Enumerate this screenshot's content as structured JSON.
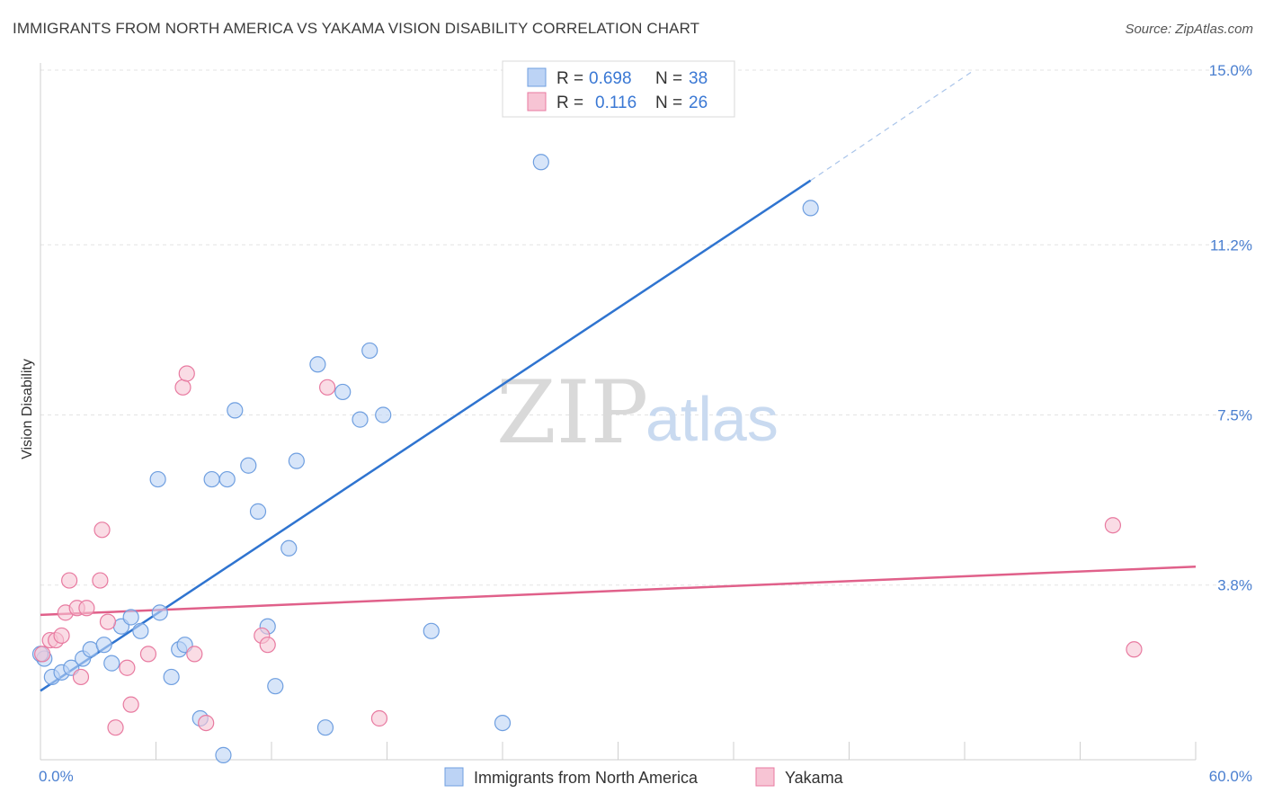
{
  "title": "IMMIGRANTS FROM NORTH AMERICA VS YAKAMA VISION DISABILITY CORRELATION CHART",
  "source": "Source: ZipAtlas.com",
  "watermark": {
    "zip": "ZIP",
    "atlas": "atlas"
  },
  "legend": {
    "r_label": "R =",
    "n_label": "N =",
    "blue": {
      "r": "0.698",
      "n": "38"
    },
    "pink": {
      "r": "0.116",
      "n": "26"
    }
  },
  "chart_data": {
    "type": "scatter",
    "title": "IMMIGRANTS FROM NORTH AMERICA VS YAKAMA VISION DISABILITY CORRELATION CHART",
    "xlabel": "",
    "ylabel": "Vision Disability",
    "xlim": [
      0,
      60
    ],
    "ylim": [
      0,
      15
    ],
    "x_tick_labels": [
      "0.0%",
      "60.0%"
    ],
    "y_ticks": [
      3.8,
      7.5,
      11.2,
      15.0
    ],
    "y_tick_labels": [
      "3.8%",
      "7.5%",
      "11.2%",
      "15.0%"
    ],
    "colors": {
      "blue": "#6f9fe0",
      "blue_fill": "#bcd3f5",
      "pink": "#e87aa0",
      "pink_fill": "#f7c4d4",
      "blue_line": "#2f74d0",
      "pink_line": "#e0608a"
    },
    "series": [
      {
        "name": "Immigrants from North America",
        "color": "blue",
        "R": 0.698,
        "N": 38,
        "trend": {
          "x0": 0,
          "y0": 1.5,
          "x1": 40,
          "y1": 12.6,
          "dash_to_x": 48.5,
          "dash_to_y": 15.0
        },
        "points": [
          [
            0.2,
            2.2
          ],
          [
            0.6,
            1.8
          ],
          [
            1.1,
            1.9
          ],
          [
            1.6,
            2.0
          ],
          [
            2.2,
            2.2
          ],
          [
            2.6,
            2.4
          ],
          [
            3.3,
            2.5
          ],
          [
            3.7,
            2.1
          ],
          [
            4.2,
            2.9
          ],
          [
            4.7,
            3.1
          ],
          [
            5.2,
            2.8
          ],
          [
            6.1,
            6.1
          ],
          [
            6.2,
            3.2
          ],
          [
            6.8,
            1.8
          ],
          [
            7.2,
            2.4
          ],
          [
            7.5,
            2.5
          ],
          [
            8.3,
            0.9
          ],
          [
            8.9,
            6.1
          ],
          [
            9.5,
            0.1
          ],
          [
            9.7,
            6.1
          ],
          [
            10.1,
            7.6
          ],
          [
            10.8,
            6.4
          ],
          [
            11.3,
            5.4
          ],
          [
            11.8,
            2.9
          ],
          [
            12.2,
            1.6
          ],
          [
            12.9,
            4.6
          ],
          [
            13.3,
            6.5
          ],
          [
            14.4,
            8.6
          ],
          [
            14.8,
            0.7
          ],
          [
            15.7,
            8.0
          ],
          [
            16.6,
            7.4
          ],
          [
            17.1,
            8.9
          ],
          [
            17.8,
            7.5
          ],
          [
            20.3,
            2.8
          ],
          [
            24.0,
            0.8
          ],
          [
            26.0,
            13.0
          ],
          [
            40.0,
            12.0
          ],
          [
            0.0,
            2.3
          ]
        ]
      },
      {
        "name": "Yakama",
        "color": "pink",
        "R": 0.116,
        "N": 26,
        "trend": {
          "x0": 0,
          "y0": 3.15,
          "x1": 60,
          "y1": 4.2
        },
        "points": [
          [
            0.1,
            2.3
          ],
          [
            0.5,
            2.6
          ],
          [
            0.8,
            2.6
          ],
          [
            1.1,
            2.7
          ],
          [
            1.3,
            3.2
          ],
          [
            1.5,
            3.9
          ],
          [
            1.9,
            3.3
          ],
          [
            2.1,
            1.8
          ],
          [
            2.4,
            3.3
          ],
          [
            3.1,
            3.9
          ],
          [
            3.2,
            5.0
          ],
          [
            3.5,
            3.0
          ],
          [
            4.5,
            2.0
          ],
          [
            4.7,
            1.2
          ],
          [
            5.6,
            2.3
          ],
          [
            7.4,
            8.1
          ],
          [
            7.6,
            8.4
          ],
          [
            8.0,
            2.3
          ],
          [
            8.6,
            0.8
          ],
          [
            11.5,
            2.7
          ],
          [
            11.8,
            2.5
          ],
          [
            14.9,
            8.1
          ],
          [
            17.6,
            0.9
          ],
          [
            3.9,
            0.7
          ],
          [
            55.7,
            5.1
          ],
          [
            56.8,
            2.4
          ]
        ]
      }
    ]
  },
  "bottom_legend": [
    {
      "label": "Immigrants from North America",
      "color": "blue"
    },
    {
      "label": "Yakama",
      "color": "pink"
    }
  ]
}
